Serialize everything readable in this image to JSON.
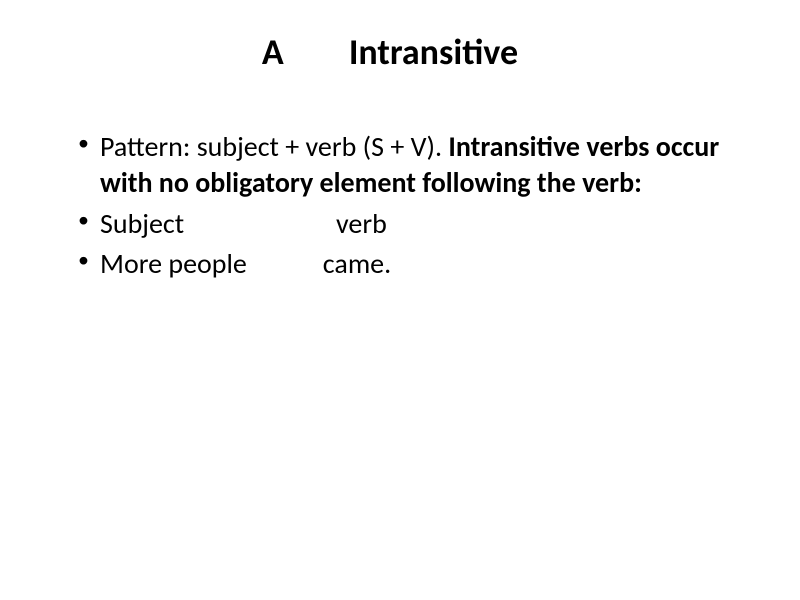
{
  "slide": {
    "title": "A        Intransitive",
    "bullets": [
      {
        "prefix": "Pattern: subject + verb (S + V). ",
        "bold": "Intransitive verbs occur with no obligatory element following the verb:"
      },
      {
        "text": "Subject                        verb"
      },
      {
        "text": "More people            came."
      }
    ],
    "styling": {
      "background_color": "#ffffff",
      "text_color": "#000000",
      "title_fontsize": 36,
      "body_fontsize": 28,
      "font_family": "Calibri"
    }
  }
}
